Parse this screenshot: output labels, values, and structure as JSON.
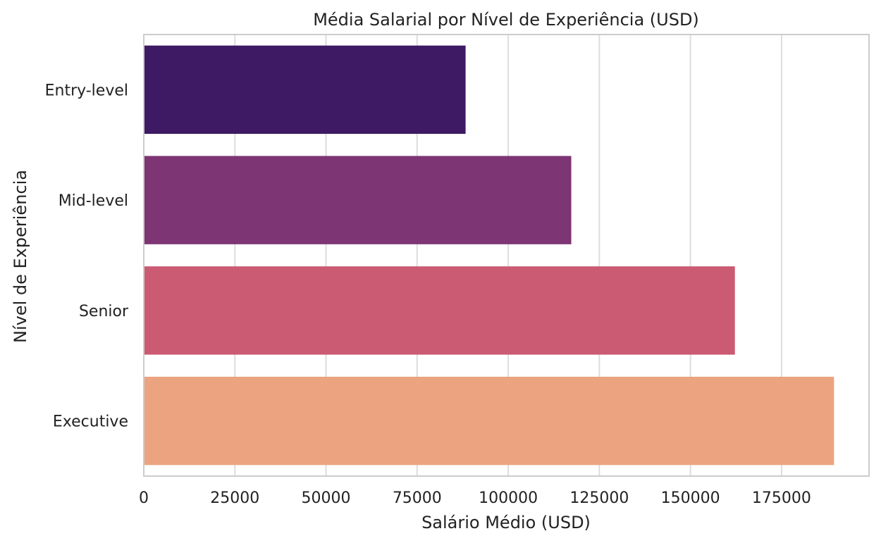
{
  "chart_data": {
    "type": "bar",
    "orientation": "horizontal",
    "title": "Média Salarial por Nível de Experiência (USD)",
    "xlabel": "Salário Médio (USD)",
    "ylabel": "Nível de Experiência",
    "categories": [
      "Entry-level",
      "Mid-level",
      "Senior",
      "Executive"
    ],
    "values": [
      88300,
      117300,
      162200,
      189400
    ],
    "colors": [
      "#3d1a63",
      "#7e3574",
      "#cb5b72",
      "#eba47f"
    ],
    "xlim": [
      0,
      199000
    ],
    "xticks": [
      0,
      25000,
      50000,
      75000,
      100000,
      125000,
      150000,
      175000
    ],
    "xtick_labels": [
      "0",
      "25000",
      "50000",
      "75000",
      "100000",
      "125000",
      "150000",
      "175000"
    ],
    "grid": "vertical",
    "legend": "none"
  }
}
